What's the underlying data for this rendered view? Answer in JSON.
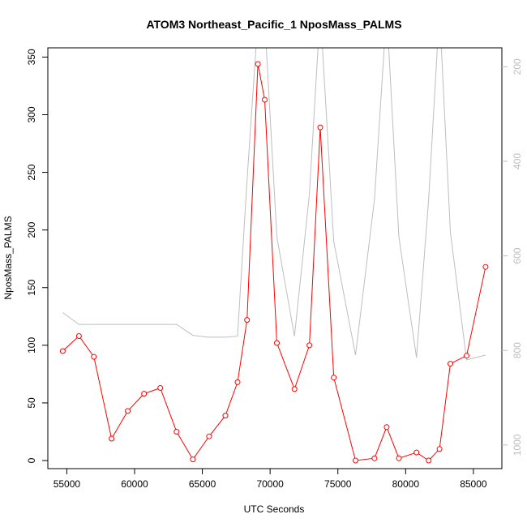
{
  "chart_data": {
    "type": "line",
    "title": "ATOM3 Northeast_Pacific_1 NposMass_PALMS",
    "xlabel": "UTC Seconds",
    "ylabel": "NposMass_PALMS",
    "xlim": [
      53600,
      87100
    ],
    "ylim": [
      -7,
      358
    ],
    "y2lim": [
      1050,
      160
    ],
    "y2_reversed": true,
    "x_ticks": [
      55000,
      60000,
      65000,
      70000,
      75000,
      80000,
      85000
    ],
    "y_ticks": [
      0,
      50,
      100,
      150,
      200,
      250,
      300,
      350
    ],
    "y2_ticks": [
      200,
      400,
      600,
      800,
      1000
    ],
    "grid": false,
    "series": [
      {
        "color": "#ff0000",
        "marker": "open-circle",
        "axis": "left",
        "x": [
          54700,
          55900,
          57000,
          58300,
          59500,
          60700,
          61900,
          63100,
          64300,
          65500,
          66700,
          67600,
          68300,
          69100,
          69600,
          70500,
          71800,
          72900,
          73700,
          74700,
          76300,
          77700,
          78600,
          79500,
          80800,
          81700,
          82500,
          83300,
          84500,
          85900
        ],
        "y": [
          95,
          108,
          90,
          19,
          43,
          58,
          63,
          25,
          1,
          21,
          39,
          68,
          122,
          344,
          313,
          102,
          62,
          100,
          289,
          72,
          0,
          2,
          29,
          2,
          7,
          0,
          10,
          84,
          91,
          168
        ]
      },
      {
        "color": "#bebebe",
        "marker": "none",
        "axis": "right",
        "x": [
          54700,
          55900,
          57000,
          58300,
          59500,
          60700,
          61900,
          63100,
          64300,
          65500,
          66700,
          67600,
          68300,
          69100,
          69600,
          70500,
          71800,
          72900,
          73700,
          74700,
          76300,
          77700,
          78600,
          79500,
          80800,
          81700,
          82500,
          83300,
          84500,
          85900
        ],
        "y": [
          720,
          745,
          745,
          745,
          745,
          745,
          745,
          745,
          768,
          772,
          772,
          770,
          440,
          100,
          100,
          560,
          770,
          470,
          80,
          570,
          810,
          480,
          80,
          560,
          815,
          480,
          80,
          550,
          820,
          810
        ]
      }
    ]
  }
}
